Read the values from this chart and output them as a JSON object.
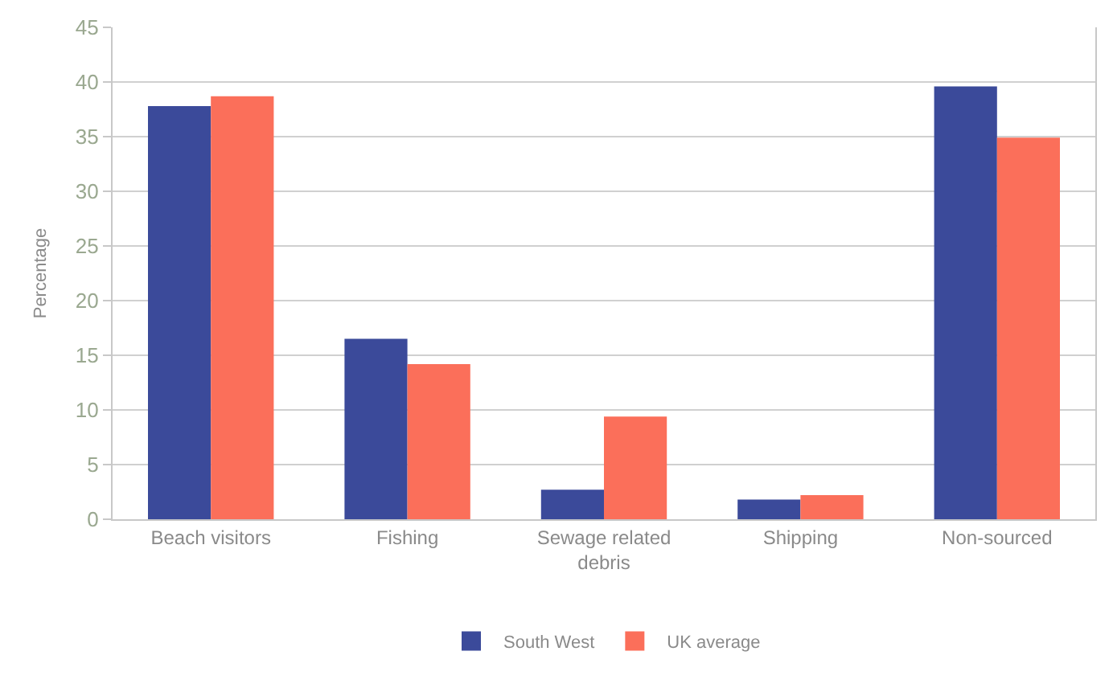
{
  "chart_data": {
    "type": "bar",
    "ylabel": "Percentage",
    "categories": [
      "Beach visitors",
      "Fishing",
      "Sewage related debris",
      "Shipping",
      "Non-sourced"
    ],
    "series": [
      {
        "name": "South West",
        "color": "#3b4a9a",
        "values": [
          37.8,
          16.5,
          2.7,
          1.8,
          39.6
        ]
      },
      {
        "name": "UK average",
        "color": "#fb6f5a",
        "values": [
          38.7,
          14.2,
          9.4,
          2.2,
          34.9
        ]
      }
    ],
    "ylim": [
      0,
      45
    ],
    "yticks": [
      0,
      5,
      10,
      15,
      20,
      25,
      30,
      35,
      40,
      45
    ],
    "grid": "y",
    "legend": "bottom"
  }
}
